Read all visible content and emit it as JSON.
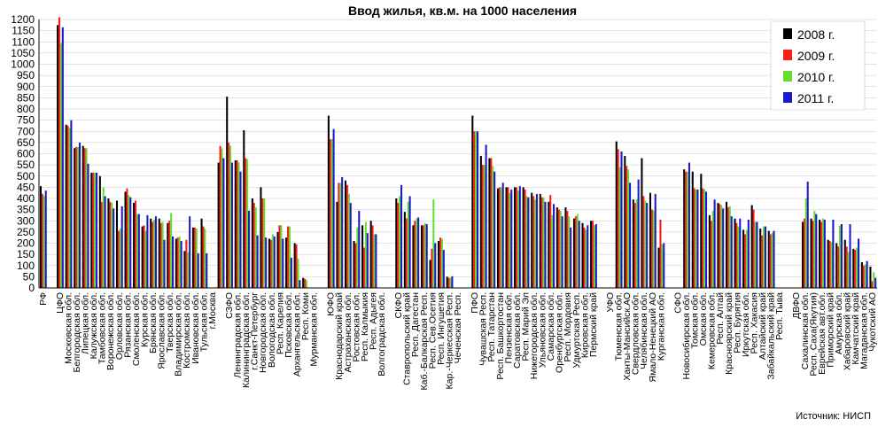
{
  "chart_data": {
    "type": "bar",
    "title": "Ввод жилья, кв.м. на 1000 населения",
    "source": "Источник: НИСП",
    "ylim": [
      0,
      1200
    ],
    "yticks": [
      0,
      50,
      100,
      150,
      200,
      250,
      300,
      350,
      400,
      450,
      500,
      550,
      600,
      650,
      700,
      750,
      800,
      850,
      900,
      950,
      1000,
      1050,
      1100,
      1150,
      1200
    ],
    "grid": true,
    "legend_position": "top-right",
    "colors": {
      "2008 г.": "#000000",
      "2009 г.": "#ff1a1a",
      "2010 г.": "#66dd33",
      "2011 г.": "#1a1acc"
    },
    "categories": [
      "РФ",
      "",
      "ЦФО",
      "Московская обл.",
      "Белгородская обл.",
      "Липецкая обл.",
      "Калужская обл.",
      "Тамбовская обл.",
      "Воронежская обл.",
      "Орловская обл.",
      "Рязанская обл.",
      "Смоленская обл.",
      "Курская обл.",
      "Брянская обл.",
      "Ярославская обл.",
      "Тверская обл.",
      "Владимирская обл.",
      "Костромская обл.",
      "Ивановская обл.",
      "Тульская обл.",
      "г.Москва",
      "",
      "СЗФО",
      "Ленинградская обл.",
      "Калининградская обл.",
      "г.Санкт-Петербург",
      "Новгородская обл.",
      "Вологодская обл.",
      "Респ. Карелия",
      "Псковская обл.",
      "Архангельская обл.",
      "Респ. Коми",
      "Мурманская обл.",
      "",
      "ЮФО",
      "Краснодарский край",
      "Астраханская обл.",
      "Ростовская обл.",
      "Респ. Калмыкия",
      "Респ. Адыгея",
      "Волгоградская обл.",
      "",
      "СКФО",
      "Ставропольский край",
      "Респ. Дагестан",
      "Каб.-Балкарская Респ.",
      "Респ. Сев.Осетия",
      "Респ. Ингушетия",
      "Кар.-Черкесская Респ.",
      "Чеченская Респ.",
      "",
      "ПФО",
      "Чувашская Респ.",
      "Респ. Татарстан",
      "Респ. Башкортостан",
      "Пензенская обл.",
      "Саратовская обл.",
      "Респ. Марий Эл",
      "Нижегородская обл.",
      "Ульяновская обл.",
      "Самарская обл.",
      "Оренбургская обл.",
      "Респ. Мордовия",
      "Удмуртская Респ.",
      "Кировская обл.",
      "Пермский край",
      "",
      "УФО",
      "Тюменская обл.",
      "Ханты-Мансийск.АО",
      "Свердловская обл.",
      "Челябинская обл.",
      "Ямало-Ненецкий АО",
      "Курганская обл.",
      "",
      "СФО",
      "Новосибирская обл.",
      "Томская обл.",
      "Омская обл.",
      "Кемеровская обл.",
      "Респ. Алтай",
      "Красноярский край",
      "Респ. Бурятия",
      "Иркутская обл.",
      "Респ. Хакасия",
      "Алтайский край",
      "Забайкальский край",
      "Респ. Тыва",
      "",
      "ДВФО",
      "Сахалинская обл.",
      "Респ. Саха(Якутия)",
      "Еврейская авт.обл.",
      "Приморский край",
      "Амурская обл.",
      "Хабаровский край",
      "Камчатский край",
      "Магаданская обл.",
      "Чукотский АО"
    ],
    "series": [
      {
        "name": "2008 г.",
        "values": [
          455,
          null,
          1175,
          730,
          625,
          635,
          515,
          500,
          400,
          390,
          430,
          380,
          275,
          310,
          310,
          290,
          220,
          165,
          270,
          310,
          null,
          560,
          855,
          570,
          705,
          400,
          450,
          220,
          250,
          225,
          200,
          45,
          null,
          null,
          770,
          385,
          480,
          210,
          280,
          300,
          null,
          null,
          400,
          340,
          280,
          280,
          125,
          210,
          50,
          null,
          null,
          770,
          590,
          580,
          445,
          450,
          450,
          450,
          425,
          420,
          385,
          360,
          360,
          310,
          290,
          300,
          null,
          null,
          655,
          590,
          395,
          580,
          425,
          180,
          null,
          null,
          530,
          520,
          510,
          325,
          380,
          385,
          310,
          260,
          370,
          265,
          255,
          null,
          null,
          null,
          295,
          310,
          305,
          215,
          200,
          215,
          175,
          115,
          95
        ]
      },
      {
        "name": "2009 г.",
        "values": [
          420,
          null,
          1210,
          725,
          630,
          625,
          515,
          385,
          385,
          255,
          445,
          390,
          280,
          295,
          290,
          300,
          225,
          215,
          270,
          275,
          null,
          635,
          650,
          570,
          580,
          380,
          400,
          215,
          280,
          275,
          195,
          40,
          null,
          null,
          665,
          470,
          460,
          200,
          180,
          280,
          null,
          null,
          380,
          310,
          300,
          280,
          175,
          225,
          45,
          null,
          null,
          700,
          550,
          580,
          450,
          450,
          450,
          440,
          410,
          405,
          415,
          350,
          345,
          320,
          270,
          300,
          null,
          null,
          620,
          545,
          380,
          410,
          350,
          305,
          null,
          null,
          520,
          445,
          445,
          300,
          375,
          360,
          290,
          240,
          350,
          235,
          240,
          null,
          null,
          null,
          310,
          300,
          295,
          210,
          185,
          185,
          170,
          100,
          30
        ]
      },
      {
        "name": "2010 г.",
        "values": [
          410,
          null,
          1095,
          715,
          630,
          625,
          515,
          450,
          380,
          265,
          415,
          330,
          255,
          305,
          295,
          335,
          230,
          160,
          265,
          265,
          null,
          625,
          635,
          560,
          575,
          360,
          400,
          240,
          280,
          275,
          130,
          35,
          null,
          null,
          665,
          470,
          420,
          270,
          295,
          240,
          null,
          null,
          410,
          385,
          310,
          290,
          395,
          220,
          45,
          null,
          null,
          700,
          550,
          545,
          450,
          425,
          435,
          410,
          395,
          405,
          325,
          345,
          320,
          330,
          260,
          280,
          null,
          null,
          540,
          530,
          395,
          390,
          345,
          195,
          null,
          null,
          520,
          440,
          440,
          345,
          370,
          365,
          275,
          260,
          295,
          275,
          245,
          null,
          null,
          null,
          400,
          345,
          310,
          205,
          280,
          160,
          180,
          105,
          70
        ]
      },
      {
        "name": "2011 г.",
        "values": [
          435,
          null,
          1165,
          750,
          650,
          555,
          515,
          410,
          355,
          365,
          405,
          330,
          325,
          320,
          215,
          230,
          210,
          320,
          155,
          155,
          null,
          580,
          560,
          520,
          345,
          235,
          225,
          230,
          220,
          135,
          35,
          null,
          null,
          null,
          710,
          495,
          380,
          345,
          245,
          240,
          null,
          null,
          460,
          410,
          315,
          285,
          200,
          170,
          52,
          null,
          null,
          700,
          640,
          520,
          470,
          440,
          455,
          405,
          420,
          385,
          375,
          320,
          270,
          300,
          280,
          285,
          null,
          null,
          610,
          470,
          485,
          380,
          420,
          200,
          null,
          null,
          560,
          440,
          430,
          395,
          355,
          320,
          310,
          305,
          295,
          275,
          255,
          null,
          null,
          null,
          475,
          330,
          305,
          305,
          285,
          285,
          220,
          120,
          45
        ]
      }
    ]
  }
}
